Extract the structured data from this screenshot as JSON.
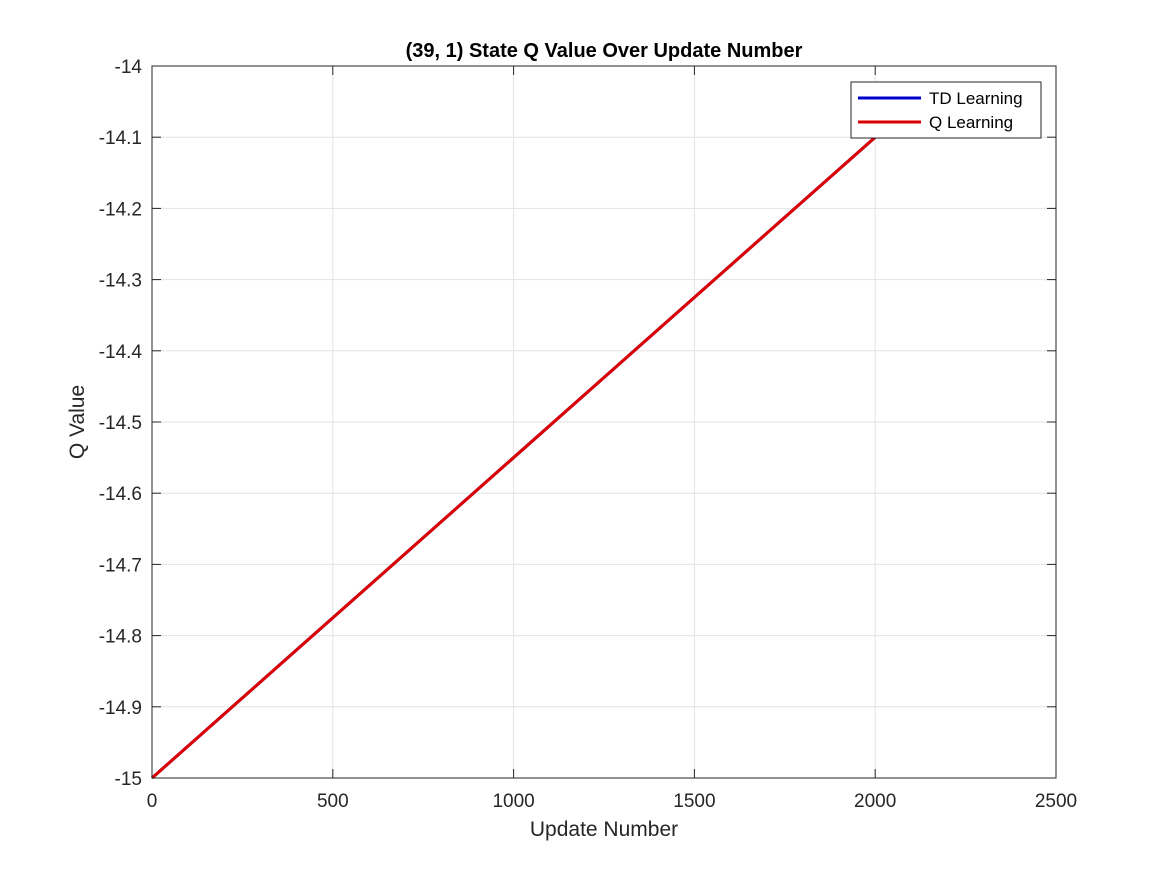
{
  "chart_data": {
    "type": "line",
    "title": "(39, 1) State Q Value Over Update Number",
    "xlabel": "Update Number",
    "ylabel": "Q Value",
    "xlim": [
      0,
      2500
    ],
    "ylim": [
      -15,
      -14
    ],
    "xticks": [
      0,
      500,
      1000,
      1500,
      2000,
      2500
    ],
    "xtick_labels": [
      "0",
      "500",
      "1000",
      "1500",
      "2000",
      "2500"
    ],
    "yticks": [
      -15,
      -14.9,
      -14.8,
      -14.7,
      -14.6,
      -14.5,
      -14.4,
      -14.3,
      -14.2,
      -14.1,
      -14
    ],
    "ytick_labels": [
      "-15",
      "-14.9",
      "-14.8",
      "-14.7",
      "-14.6",
      "-14.5",
      "-14.4",
      "-14.3",
      "-14.2",
      "-14.1",
      "-14"
    ],
    "grid": true,
    "legend_position": "top-right",
    "series": [
      {
        "name": "TD Learning",
        "color": "#0000cc",
        "x": [
          0,
          2000
        ],
        "y": [
          -15,
          -14.1
        ]
      },
      {
        "name": "Q Learning",
        "color": "#dd0000",
        "x": [
          0,
          2000
        ],
        "y": [
          -15,
          -14.1
        ]
      }
    ]
  }
}
